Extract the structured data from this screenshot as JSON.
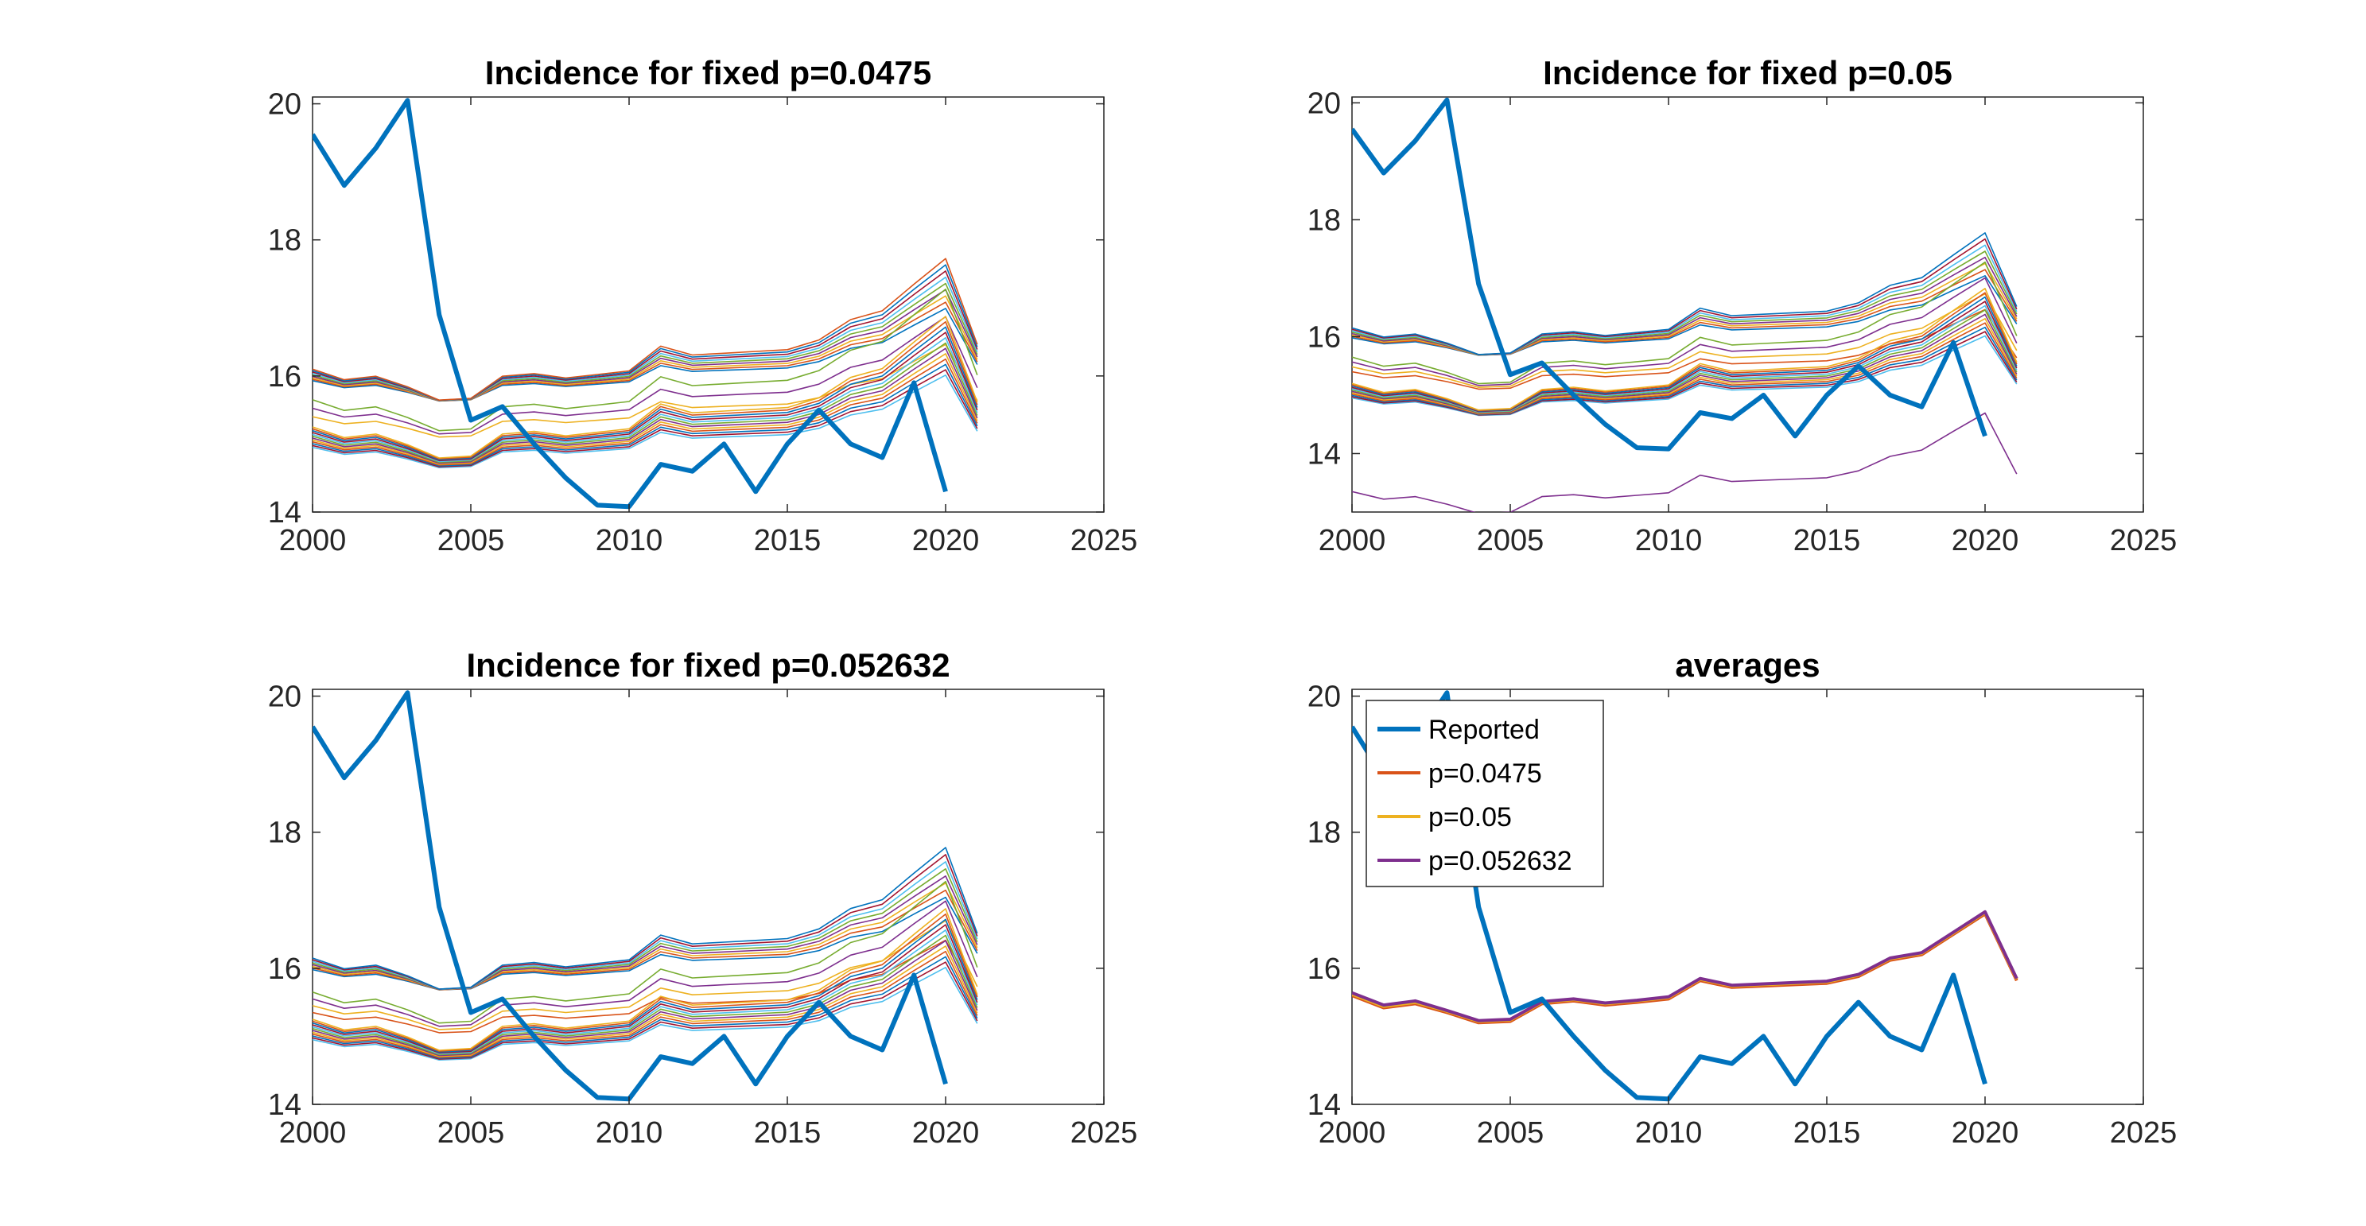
{
  "chart_data": [
    {
      "type": "line",
      "title": "Incidence for fixed p=0.0475",
      "xlim": [
        2000,
        2025
      ],
      "ylim": [
        14,
        20.1
      ],
      "xticks": [
        2000,
        2005,
        2010,
        2015,
        2020,
        2025
      ],
      "yticks": [
        14,
        16,
        18,
        20
      ],
      "grid": false,
      "reported": {
        "x": [
          2000,
          2001,
          2002,
          2003,
          2004,
          2005,
          2006,
          2007,
          2008,
          2009,
          2010,
          2011,
          2012,
          2013,
          2014,
          2015,
          2016,
          2017,
          2018,
          2019,
          2020
        ],
        "values": [
          19.55,
          18.8,
          19.35,
          20.05,
          16.9,
          15.35,
          15.55,
          15.0,
          14.5,
          14.1,
          14.08,
          14.7,
          14.6,
          15.0,
          14.3,
          15.0,
          15.5,
          15.0,
          14.8,
          15.9,
          14.3
        ]
      },
      "simulation_bands": [
        {
          "anchor": 16.05,
          "count": 9,
          "min_offset": -0.12,
          "max_offset": 0.05
        },
        {
          "anchor": 15.6,
          "count": 3,
          "min_offset": -0.2,
          "max_offset": 0.05
        },
        {
          "anchor": 15.2,
          "count": 12,
          "min_offset": -0.25,
          "max_offset": 0.05
        }
      ]
    },
    {
      "type": "line",
      "title": "Incidence for fixed p=0.05",
      "xlim": [
        2000,
        2025
      ],
      "ylim": [
        13,
        20.1
      ],
      "xticks": [
        2000,
        2005,
        2010,
        2015,
        2020,
        2025
      ],
      "yticks": [
        14,
        16,
        18,
        20
      ],
      "grid": false,
      "reported": {
        "x": [
          2000,
          2001,
          2002,
          2003,
          2004,
          2005,
          2006,
          2007,
          2008,
          2009,
          2010,
          2011,
          2012,
          2013,
          2014,
          2015,
          2016,
          2017,
          2018,
          2019,
          2020
        ],
        "values": [
          19.55,
          18.8,
          19.35,
          20.05,
          16.9,
          15.35,
          15.55,
          15.0,
          14.5,
          14.1,
          14.08,
          14.7,
          14.6,
          15.0,
          14.3,
          15.0,
          15.5,
          15.0,
          14.8,
          15.9,
          14.3
        ]
      },
      "simulation_bands": [
        {
          "anchor": 16.1,
          "count": 8,
          "min_offset": -0.12,
          "max_offset": 0.05
        },
        {
          "anchor": 15.6,
          "count": 4,
          "min_offset": -0.2,
          "max_offset": 0.05
        },
        {
          "anchor": 15.15,
          "count": 12,
          "min_offset": -0.2,
          "max_offset": 0.05
        },
        {
          "anchor": 13.35,
          "count": 1,
          "min_offset": 0,
          "max_offset": 0
        }
      ]
    },
    {
      "type": "line",
      "title": "Incidence for fixed p=0.052632",
      "xlim": [
        2000,
        2025
      ],
      "ylim": [
        14,
        20.1
      ],
      "xticks": [
        2000,
        2005,
        2010,
        2015,
        2020,
        2025
      ],
      "yticks": [
        14,
        16,
        18,
        20
      ],
      "grid": false,
      "reported": {
        "x": [
          2000,
          2001,
          2002,
          2003,
          2004,
          2005,
          2006,
          2007,
          2008,
          2009,
          2010,
          2011,
          2012,
          2013,
          2014,
          2015,
          2016,
          2017,
          2018,
          2019,
          2020
        ],
        "values": [
          19.55,
          18.8,
          19.35,
          20.05,
          16.9,
          15.35,
          15.55,
          15.0,
          14.5,
          14.1,
          14.08,
          14.7,
          14.6,
          15.0,
          14.3,
          15.0,
          15.5,
          15.0,
          14.8,
          15.9,
          14.3
        ]
      },
      "simulation_bands": [
        {
          "anchor": 16.1,
          "count": 8,
          "min_offset": -0.12,
          "max_offset": 0.05
        },
        {
          "anchor": 15.6,
          "count": 4,
          "min_offset": -0.25,
          "max_offset": 0.05
        },
        {
          "anchor": 15.2,
          "count": 12,
          "min_offset": -0.25,
          "max_offset": 0.05
        }
      ]
    },
    {
      "type": "line",
      "title": "averages",
      "xlim": [
        2000,
        2025
      ],
      "ylim": [
        14,
        20.1
      ],
      "xticks": [
        2000,
        2005,
        2010,
        2015,
        2020,
        2025
      ],
      "yticks": [
        14,
        16,
        18,
        20
      ],
      "grid": false,
      "legend": "top-left",
      "x": [
        2000,
        2001,
        2002,
        2003,
        2004,
        2005,
        2006,
        2007,
        2008,
        2009,
        2010,
        2011,
        2012,
        2013,
        2014,
        2015,
        2016,
        2017,
        2018,
        2019,
        2020,
        2021
      ],
      "series": [
        {
          "name": "Reported",
          "color": "#0072BD",
          "values": [
            19.55,
            18.8,
            19.35,
            20.05,
            16.9,
            15.35,
            15.55,
            15.0,
            14.5,
            14.1,
            14.08,
            14.7,
            14.6,
            15.0,
            14.3,
            15.0,
            15.5,
            15.0,
            14.8,
            15.9,
            14.3,
            null
          ]
        },
        {
          "name": "p=0.0475",
          "color": "#D95319",
          "values": [
            15.6,
            15.42,
            15.48,
            15.35,
            15.2,
            15.22,
            15.48,
            15.52,
            15.46,
            15.5,
            15.55,
            15.82,
            15.72,
            15.74,
            15.76,
            15.78,
            15.88,
            16.12,
            16.2,
            16.5,
            16.8,
            15.82
          ]
        },
        {
          "name": "p=0.05",
          "color": "#EDB120",
          "values": [
            15.62,
            15.44,
            15.5,
            15.37,
            15.22,
            15.24,
            15.5,
            15.54,
            15.48,
            15.52,
            15.57,
            15.84,
            15.74,
            15.76,
            15.78,
            15.8,
            15.9,
            16.14,
            16.22,
            16.52,
            16.82,
            15.84
          ]
        },
        {
          "name": "p=0.052632",
          "color": "#7E2F8E",
          "values": [
            15.64,
            15.46,
            15.52,
            15.38,
            15.23,
            15.25,
            15.51,
            15.55,
            15.49,
            15.53,
            15.58,
            15.85,
            15.75,
            15.77,
            15.79,
            15.81,
            15.91,
            16.15,
            16.23,
            16.53,
            16.83,
            15.85
          ]
        }
      ]
    }
  ],
  "simulation_shape": [
    0,
    -0.12,
    -0.08,
    -0.2,
    -0.35,
    -0.33,
    -0.08,
    -0.05,
    -0.1,
    -0.06,
    -0.02,
    0.26,
    0.16,
    0.18,
    0.2,
    0.22,
    0.33,
    0.56,
    0.66,
    0.96,
    1.25,
    0.28
  ],
  "sim_palette": [
    "#0072BD",
    "#D95319",
    "#EDB120",
    "#7E2F8E",
    "#77AC30",
    "#4DBEEE",
    "#A2142F"
  ]
}
